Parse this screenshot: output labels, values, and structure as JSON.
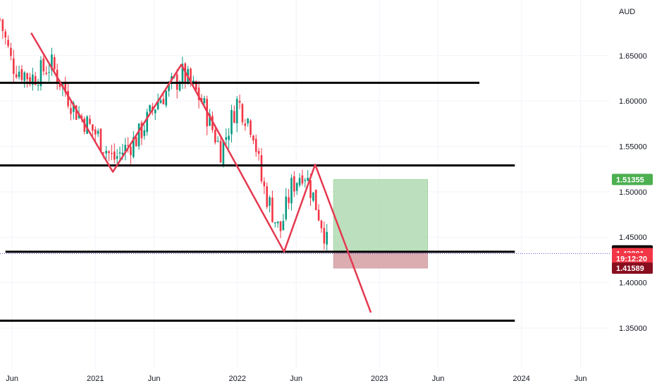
{
  "chart_data": {
    "type": "candlestick",
    "currency": "AUD",
    "ylim": [
      1.315,
      1.705
    ],
    "y_ticks": [
      1.65,
      1.6,
      1.55,
      1.5,
      1.45,
      1.4,
      1.35
    ],
    "y_tick_labels": [
      "1.65000",
      "1.60000",
      "1.55000",
      "1.50000",
      "1.45000",
      "1.40000",
      "1.35000"
    ],
    "x_ticks": [
      {
        "label": "Jun",
        "date": "2020-06-01"
      },
      {
        "label": "2021",
        "date": "2021-01-01"
      },
      {
        "label": "Jun",
        "date": "2021-06-01"
      },
      {
        "label": "2022",
        "date": "2022-01-01"
      },
      {
        "label": "Jun",
        "date": "2022-06-01"
      },
      {
        "label": "2023",
        "date": "2023-01-01"
      },
      {
        "label": "Jun",
        "date": "2023-06-01"
      },
      {
        "label": "2024",
        "date": "2024-01-01"
      },
      {
        "label": "Jun",
        "date": "2024-06-01"
      }
    ],
    "xlim": [
      "2020-05-01",
      "2024-08-15"
    ],
    "price_anchors": [
      {
        "date": "2020-05-01",
        "price": 1.69
      },
      {
        "date": "2020-06-01",
        "price": 1.64
      },
      {
        "date": "2020-07-20",
        "price": 1.625
      },
      {
        "date": "2020-09-10",
        "price": 1.64
      },
      {
        "date": "2020-11-10",
        "price": 1.59
      },
      {
        "date": "2021-01-10",
        "price": 1.56
      },
      {
        "date": "2021-02-15",
        "price": 1.535
      },
      {
        "date": "2021-04-20",
        "price": 1.56
      },
      {
        "date": "2021-06-10",
        "price": 1.6
      },
      {
        "date": "2021-08-15",
        "price": 1.63
      },
      {
        "date": "2021-10-01",
        "price": 1.6
      },
      {
        "date": "2021-11-20",
        "price": 1.545
      },
      {
        "date": "2022-01-01",
        "price": 1.6
      },
      {
        "date": "2022-02-10",
        "price": 1.57
      },
      {
        "date": "2022-03-05",
        "price": 1.51
      },
      {
        "date": "2022-04-20",
        "price": 1.455
      },
      {
        "date": "2022-05-20",
        "price": 1.505
      },
      {
        "date": "2022-06-20",
        "price": 1.525
      },
      {
        "date": "2022-07-15",
        "price": 1.495
      },
      {
        "date": "2022-08-10",
        "price": 1.46
      },
      {
        "date": "2022-08-25",
        "price": 1.432
      }
    ],
    "horizontal_levels": [
      {
        "price": 1.62,
        "from": "2020-05-01",
        "to": "2023-09-15"
      },
      {
        "price": 1.529,
        "from": "2020-05-01",
        "to": "2023-12-15"
      },
      {
        "price": 1.434,
        "from": "2020-05-15",
        "to": "2023-12-15"
      },
      {
        "price": 1.358,
        "from": "2020-05-01",
        "to": "2023-12-15"
      }
    ],
    "trend_lines": [
      {
        "points": [
          {
            "date": "2020-07-20",
            "price": 1.675
          },
          {
            "date": "2021-02-15",
            "price": 1.522
          },
          {
            "date": "2021-08-10",
            "price": 1.64
          },
          {
            "date": "2022-05-01",
            "price": 1.434
          },
          {
            "date": "2022-07-20",
            "price": 1.53
          },
          {
            "date": "2022-12-10",
            "price": 1.367
          }
        ]
      }
    ],
    "position_box": {
      "from": "2022-09-05",
      "to": "2023-05-05",
      "entry": 1.4349,
      "target": 1.51355,
      "stop": 1.41589
    },
    "price_labels": [
      {
        "text": "1.51355",
        "price": 1.51355,
        "color": "#4caf50"
      },
      {
        "text": "1.43493",
        "price": 1.43493,
        "color": "#000000"
      },
      {
        "text": "1.43201",
        "price": 1.43201,
        "color": "#f23645"
      },
      {
        "text": "19:12:20",
        "price": 1.4265,
        "color": "#f23645"
      },
      {
        "text": "1.41589",
        "price": 1.41589,
        "color": "#880e1f"
      }
    ],
    "last_price": 1.43201,
    "colors": {
      "up": "#089981",
      "down": "#f23645",
      "drawing": "#e53950",
      "level": "#000000",
      "target_fill": "#a5d6a7",
      "stop_fill": "#d7a4a9",
      "last_price_line": "#5c4fd6"
    }
  }
}
